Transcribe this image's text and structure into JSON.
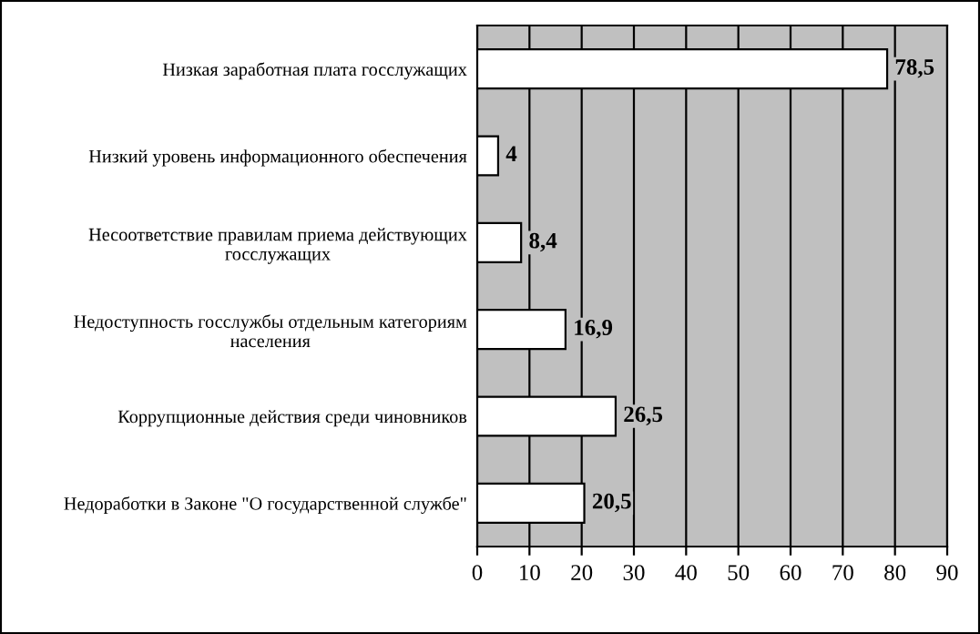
{
  "chart_data": {
    "type": "bar",
    "orientation": "horizontal",
    "categories": [
      "Низкая заработная плата госслужащих",
      "Низкий уровень информационного обеспечения",
      "Несоответствие правилам приема действующих\nгосслужащих",
      "Недоступность госслужбы отдельным категориям\nнаселения",
      "Коррупционные действия среди чиновников",
      "Недоработки в Законе \"О государственной службе\""
    ],
    "values": [
      78.5,
      4,
      8.4,
      16.9,
      26.5,
      20.5
    ],
    "value_labels": [
      "78,5",
      "4",
      "8,4",
      "16,9",
      "26,5",
      "20,5"
    ],
    "color": "#ffffff",
    "xlim": [
      0,
      90
    ],
    "xticks": [
      0,
      10,
      20,
      30,
      40,
      50,
      60,
      70,
      80,
      90
    ],
    "grid": "x"
  }
}
